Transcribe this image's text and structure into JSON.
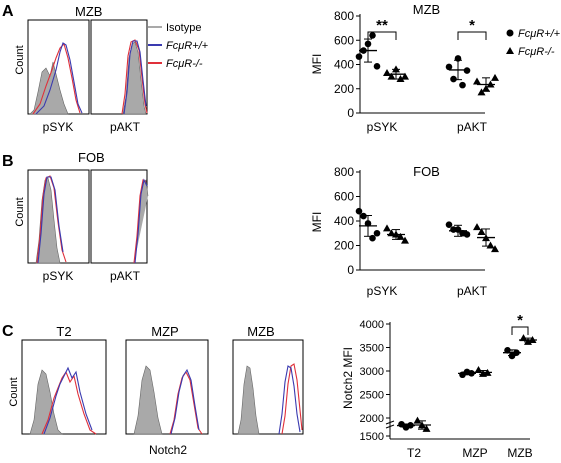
{
  "panels": {
    "A": {
      "letter": "A",
      "title": "MZB",
      "ylabel": "Count",
      "plots": [
        "pSYK",
        "pAKT"
      ]
    },
    "B": {
      "letter": "B",
      "title": "FOB",
      "ylabel": "Count",
      "plots": [
        "pSYK",
        "pAKT"
      ]
    },
    "C": {
      "letter": "C",
      "titles": [
        "T2",
        "MZP",
        "MZB"
      ],
      "xlabel": "Notch2"
    }
  },
  "legend_hist": {
    "items": [
      {
        "label": "Isotype",
        "color": "#a9a9a9"
      },
      {
        "label": "FcμR+/+",
        "color": "#3a3ab0"
      },
      {
        "label": "FcμR-/-",
        "color": "#e0303a"
      }
    ]
  },
  "legend_scatter": {
    "items": [
      {
        "label": "FcμR+/+",
        "marker": "circle"
      },
      {
        "label": "FcμR-/-",
        "marker": "triangle"
      }
    ]
  },
  "colors": {
    "isotype": "#a9a9a9",
    "wt": "#3a3ab0",
    "ko": "#e0303a"
  },
  "chart_data": [
    {
      "type": "scatter",
      "title": "MZB",
      "ylabel": "MFI",
      "categories": [
        "pSYK",
        "pAKT"
      ],
      "ylim": [
        0,
        800
      ],
      "yticks": [
        0,
        200,
        400,
        600,
        800
      ],
      "series": [
        {
          "name": "FcμR+/+",
          "marker": "circle",
          "points": [
            [
              465,
              515,
              570,
              640,
              385
            ],
            [
              380,
              280,
              450,
              230,
              350
            ]
          ],
          "mean": [
            515,
            355
          ],
          "sd": [
            95,
            80
          ]
        },
        {
          "name": "FcμR-/-",
          "marker": "triangle",
          "points": [
            [
              330,
              300,
              360,
              280,
              300
            ],
            [
              260,
              170,
              200,
              235,
              290
            ]
          ],
          "mean": [
            320,
            235
          ],
          "sd": [
            40,
            55
          ]
        }
      ],
      "significance": [
        {
          "category": "pSYK",
          "label": "**"
        },
        {
          "category": "pAKT",
          "label": "*"
        }
      ]
    },
    {
      "type": "scatter",
      "title": "FOB",
      "ylabel": "MFI",
      "categories": [
        "pSYK",
        "pAKT"
      ],
      "ylim": [
        0,
        800
      ],
      "yticks": [
        0,
        200,
        400,
        600,
        800
      ],
      "series": [
        {
          "name": "FcμR+/+",
          "marker": "circle",
          "points": [
            [
              480,
              440,
              380,
              260,
              300
            ],
            [
              370,
              330,
              330,
              300,
              290
            ]
          ],
          "mean": [
            360,
            320
          ],
          "sd": [
            85,
            45
          ]
        },
        {
          "name": "FcμR-/-",
          "marker": "triangle",
          "points": [
            [
              340,
              300,
              290,
              270,
              240
            ],
            [
              350,
              310,
              260,
              200,
              170
            ]
          ],
          "mean": [
            290,
            265
          ],
          "sd": [
            40,
            70
          ]
        }
      ],
      "significance": []
    },
    {
      "type": "scatter",
      "ylabel": "Notch2 MFI",
      "categories": [
        "T2",
        "MZP",
        "MZB"
      ],
      "ylim": [
        1500,
        4000
      ],
      "yticks": [
        1500,
        2000,
        2500,
        3000,
        3500,
        4000
      ],
      "axis_break": true,
      "series": [
        {
          "name": "FcμR+/+",
          "marker": "circle",
          "points": [
            [
              1760,
              1640,
              1720
            ],
            [
              2920,
              2980,
              2950
            ],
            [
              3440,
              3320,
              3390
            ]
          ],
          "mean": [
            1710,
            2950
          ],
          "mean_mzb": 3390
        },
        {
          "name": "FcμR-/-",
          "marker": "triangle",
          "points": [
            [
              1900,
              1720,
              1580
            ],
            [
              3020,
              2940,
              2960
            ],
            [
              3700,
              3620,
              3660
            ]
          ],
          "mean": [
            1730,
            2970
          ],
          "mean_mzb": 3660
        }
      ],
      "significance": [
        {
          "category": "MZB",
          "label": "*"
        }
      ]
    }
  ]
}
